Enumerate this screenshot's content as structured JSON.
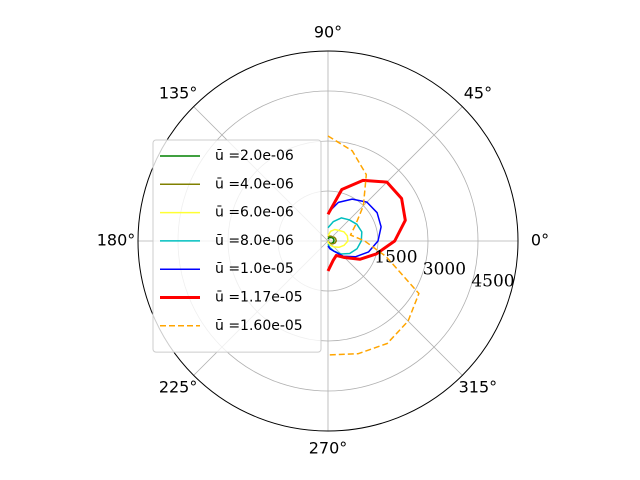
{
  "chart_data": {
    "type": "polar",
    "x": [
      90,
      75,
      60,
      45,
      30,
      15,
      0,
      -15,
      -30,
      -45,
      -60,
      -75,
      -90
    ],
    "rlim": [
      0,
      5700
    ],
    "rticks": [
      1500,
      3000,
      4500
    ],
    "thetaticks": [
      {
        "value": 0,
        "label": "0°"
      },
      {
        "value": 45,
        "label": "45°"
      },
      {
        "value": 90,
        "label": "90°"
      },
      {
        "value": 135,
        "label": "135°"
      },
      {
        "value": 180,
        "label": "180°"
      },
      {
        "value": 225,
        "label": "225°"
      },
      {
        "value": 270,
        "label": "270°"
      },
      {
        "value": 315,
        "label": "315°"
      }
    ],
    "grid": true,
    "legend": "left",
    "series": [
      {
        "name": "ū =2.0e-06",
        "color": "#008000",
        "linewidth": 1.5,
        "values": [
          60,
          100,
          130,
          150,
          170,
          180,
          180,
          160,
          130,
          90,
          50,
          20,
          0
        ]
      },
      {
        "name": "ū =4.0e-06",
        "color": "#808000",
        "linewidth": 1.5,
        "values": [
          120,
          150,
          170,
          180,
          220,
          240,
          250,
          220,
          170,
          100,
          60,
          20,
          0
        ]
      },
      {
        "name": "ū =6.0e-06",
        "color": "#ffff33",
        "linewidth": 1.5,
        "values": [
          150,
          300,
          400,
          450,
          550,
          600,
          600,
          500,
          380,
          250,
          150,
          60,
          0
        ]
      },
      {
        "name": "ū =8.0e-06",
        "color": "#00bfbf",
        "linewidth": 1.5,
        "values": [
          400,
          600,
          800,
          900,
          1000,
          1050,
          1000,
          900,
          750,
          550,
          350,
          200,
          100
        ]
      },
      {
        "name": "ū =1.0e-05",
        "color": "#0000ff",
        "linewidth": 1.5,
        "values": [
          850,
          1200,
          1450,
          1650,
          1700,
          1650,
          1500,
          1260,
          950,
          650,
          350,
          250,
          150
        ]
      },
      {
        "name": "ū =1.17e-05",
        "color": "#ff0000",
        "linewidth": 3,
        "values": [
          800,
          1600,
          2100,
          2500,
          2550,
          2400,
          2000,
          1500,
          1100,
          700,
          500,
          600,
          900
        ]
      },
      {
        "name": "ū =1.60e-05",
        "color": "#ffa500",
        "linewidth": 1.5,
        "linestyle": "dashed",
        "values": [
          3150,
          2800,
          2300,
          1500,
          950,
          700,
          1100,
          1800,
          3150,
          3400,
          3550,
          3500,
          3420
        ]
      }
    ]
  }
}
